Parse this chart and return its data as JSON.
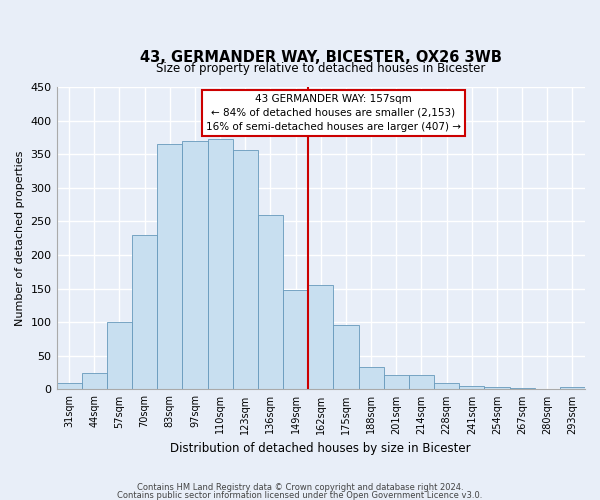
{
  "title": "43, GERMANDER WAY, BICESTER, OX26 3WB",
  "subtitle": "Size of property relative to detached houses in Bicester",
  "xlabel": "Distribution of detached houses by size in Bicester",
  "ylabel": "Number of detached properties",
  "bar_labels": [
    "31sqm",
    "44sqm",
    "57sqm",
    "70sqm",
    "83sqm",
    "97sqm",
    "110sqm",
    "123sqm",
    "136sqm",
    "149sqm",
    "162sqm",
    "175sqm",
    "188sqm",
    "201sqm",
    "214sqm",
    "228sqm",
    "241sqm",
    "254sqm",
    "267sqm",
    "280sqm",
    "293sqm"
  ],
  "bar_values": [
    10,
    25,
    100,
    230,
    365,
    370,
    372,
    357,
    260,
    148,
    155,
    96,
    33,
    21,
    21,
    10,
    5,
    4,
    2,
    1,
    3
  ],
  "bar_color": "#c8dff0",
  "bar_edge_color": "#6699bb",
  "ylim": [
    0,
    450
  ],
  "yticks": [
    0,
    50,
    100,
    150,
    200,
    250,
    300,
    350,
    400,
    450
  ],
  "vline_color": "#cc0000",
  "annotation_title": "43 GERMANDER WAY: 157sqm",
  "annotation_line1": "← 84% of detached houses are smaller (2,153)",
  "annotation_line2": "16% of semi-detached houses are larger (407) →",
  "annotation_box_color": "#ffffff",
  "annotation_box_edge": "#cc0000",
  "footnote1": "Contains HM Land Registry data © Crown copyright and database right 2024.",
  "footnote2": "Contains public sector information licensed under the Open Government Licence v3.0.",
  "bg_color": "#e8eef8",
  "plot_bg_color": "#e8eef8",
  "grid_color": "#ffffff"
}
